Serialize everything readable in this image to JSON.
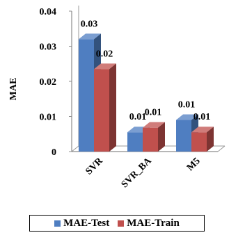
{
  "chart_data": {
    "type": "bar",
    "title": "",
    "xlabel": "",
    "ylabel": "MAE",
    "ylim": [
      0,
      0.04
    ],
    "yticks": [
      0,
      0.01,
      0.02,
      0.03,
      0.04
    ],
    "ytick_labels": [
      "0",
      "0.01",
      "0.02",
      "0.03",
      "0.04"
    ],
    "categories": [
      "SVR",
      "SVR_BA",
      "M5"
    ],
    "series": [
      {
        "name": "MAE-Test",
        "color": "#4F7EC1",
        "values": [
          0.032,
          0.0055,
          0.009
        ],
        "labels": [
          "0.03",
          "0.01",
          "0.01"
        ]
      },
      {
        "name": "MAE-Train",
        "color": "#C0504D",
        "values": [
          0.0235,
          0.0068,
          0.0055
        ],
        "labels": [
          "0.02",
          "0.01",
          "0.01"
        ]
      }
    ],
    "legend_position": "bottom",
    "grid": false,
    "style": "3d-bar"
  }
}
